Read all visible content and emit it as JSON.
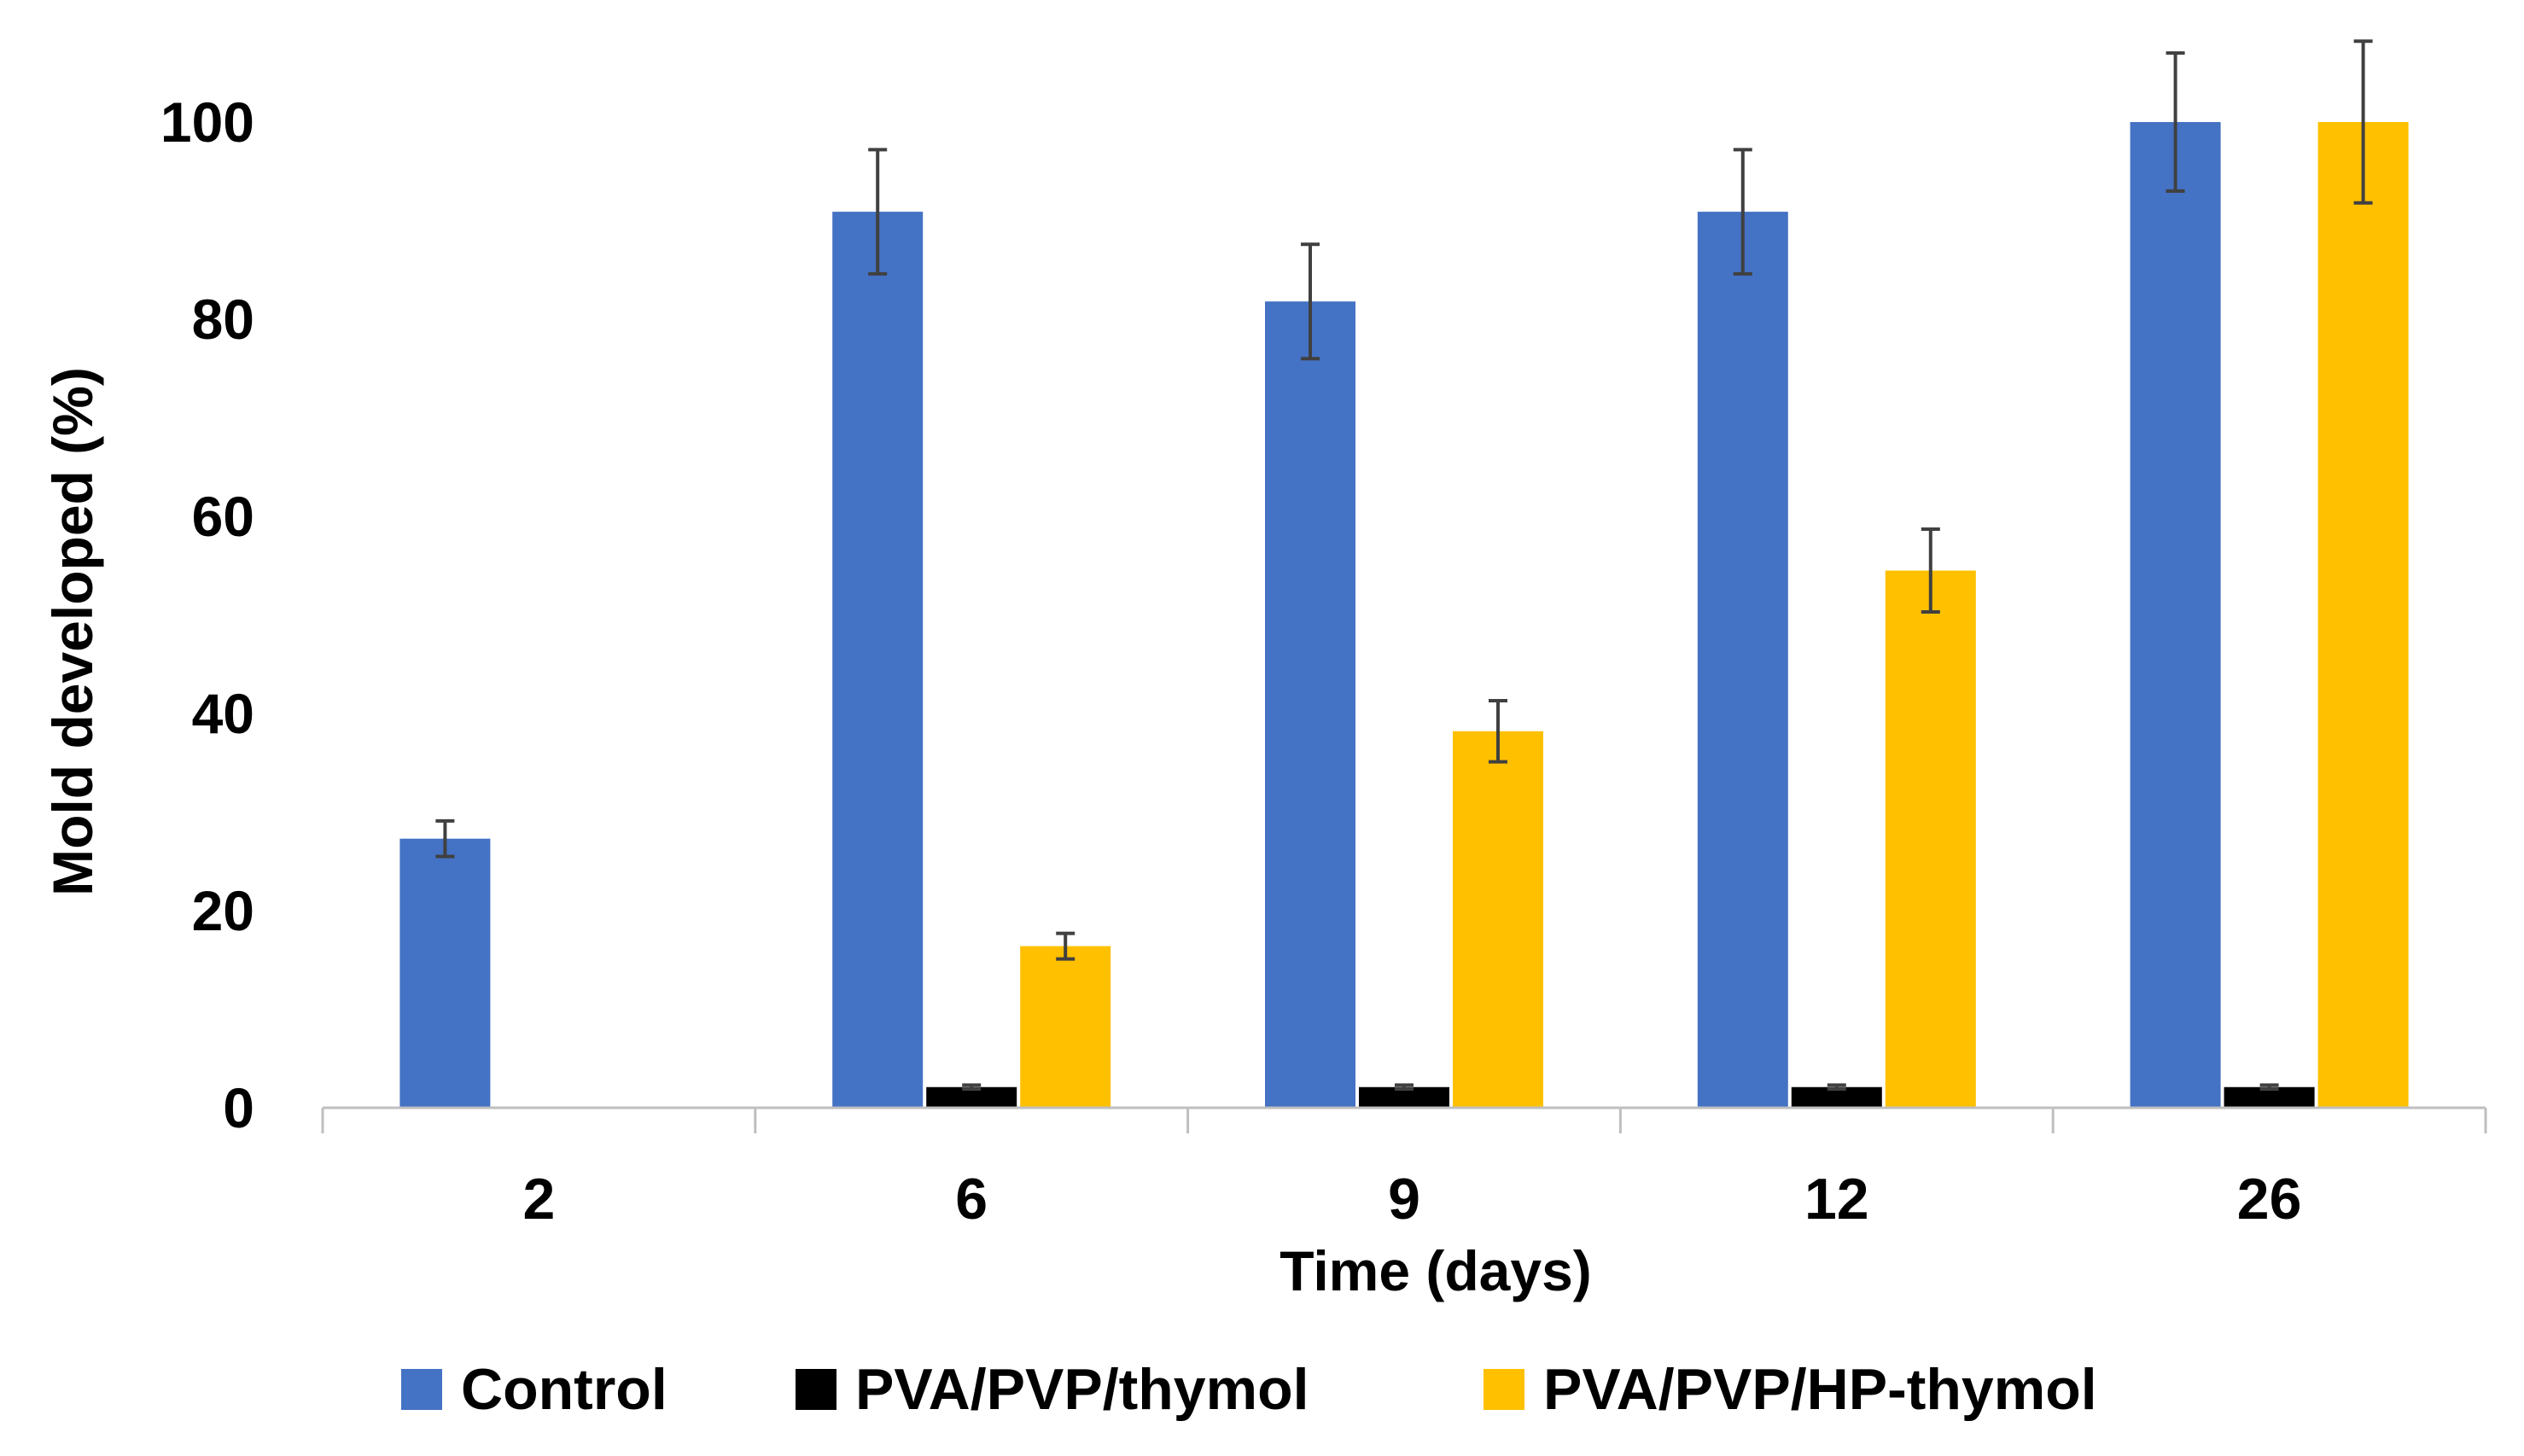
{
  "chart_data": {
    "type": "bar",
    "title": "",
    "xlabel": "Time (days)",
    "ylabel": "Mold developed (%)",
    "categories": [
      "2",
      "6",
      "9",
      "12",
      "26"
    ],
    "ylim": [
      0,
      100
    ],
    "yticks": [
      0,
      20,
      40,
      60,
      80,
      100
    ],
    "grid": false,
    "legend_position": "bottom",
    "series": [
      {
        "name": "Control",
        "color": "#4472C4",
        "values": [
          27.3,
          90.9,
          81.8,
          90.9,
          100
        ],
        "errors": [
          1.8,
          6.3,
          5.8,
          6.3,
          7.0
        ]
      },
      {
        "name": "PVA/PVP/thymol",
        "color": "#000000",
        "values": [
          null,
          2.1,
          2.1,
          2.1,
          2.1
        ],
        "errors": [
          null,
          0.2,
          0.2,
          0.2,
          0.2
        ]
      },
      {
        "name": "PVA/PVP/HP-thymol",
        "color": "#FFC000",
        "values": [
          null,
          16.4,
          38.2,
          54.5,
          100
        ],
        "errors": [
          null,
          1.3,
          3.1,
          4.2,
          8.2
        ]
      }
    ]
  }
}
